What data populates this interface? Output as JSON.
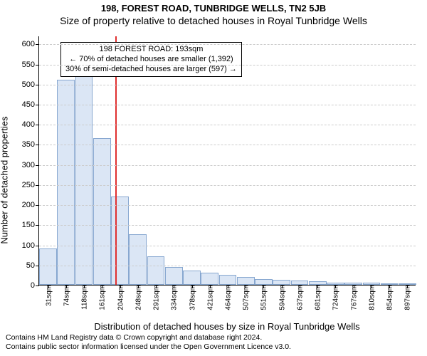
{
  "titles": {
    "main": "198, FOREST ROAD, TUNBRIDGE WELLS, TN2 5JB",
    "sub": "Size of property relative to detached houses in Royal Tunbridge Wells"
  },
  "chart": {
    "type": "histogram",
    "ylabel": "Number of detached properties",
    "xlabel": "Distribution of detached houses by size in Royal Tunbridge Wells",
    "ylim": [
      0,
      620
    ],
    "ytick_step": 50,
    "yticks": [
      0,
      50,
      100,
      150,
      200,
      250,
      300,
      350,
      400,
      450,
      500,
      550,
      600
    ],
    "bar_color": "#dbe6f5",
    "bar_border": "#87a7d0",
    "grid_color": "#cccccc",
    "background_color": "#ffffff",
    "ref_line_color": "#e03030",
    "ref_line_x_value": 193,
    "categories": [
      "31sqm",
      "74sqm",
      "118sqm",
      "161sqm",
      "204sqm",
      "248sqm",
      "291sqm",
      "334sqm",
      "378sqm",
      "421sqm",
      "464sqm",
      "507sqm",
      "551sqm",
      "594sqm",
      "637sqm",
      "681sqm",
      "724sqm",
      "767sqm",
      "810sqm",
      "854sqm",
      "897sqm"
    ],
    "values": [
      90,
      510,
      530,
      365,
      220,
      125,
      70,
      45,
      35,
      30,
      25,
      20,
      15,
      12,
      10,
      8,
      6,
      5,
      5,
      4,
      3
    ],
    "annotation": {
      "line1": "198 FOREST ROAD: 193sqm",
      "line2": "← 70% of detached houses are smaller (1,392)",
      "line3": "30% of semi-detached houses are larger (597) →"
    }
  },
  "footer": {
    "line1": "Contains HM Land Registry data © Crown copyright and database right 2024.",
    "line2": "Contains public sector information licensed under the Open Government Licence v3.0."
  }
}
